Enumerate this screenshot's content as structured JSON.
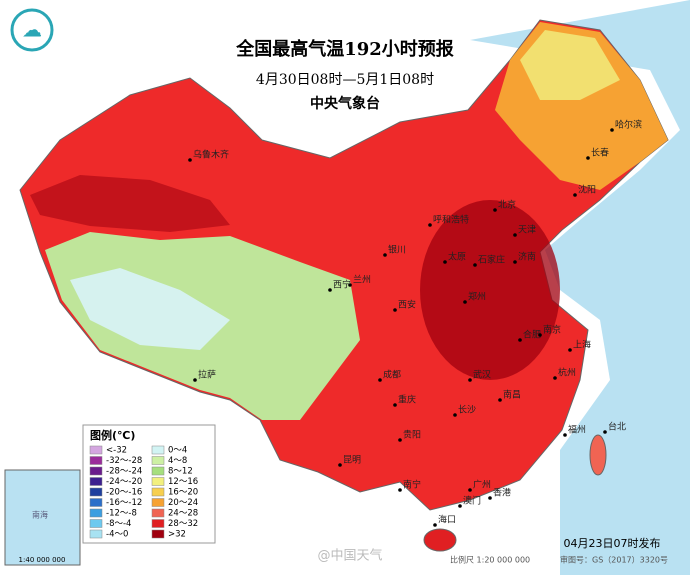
{
  "header": {
    "title": "全国最高气温192小时预报",
    "subtitle": "4月30日08时—5月1日08时",
    "agency": "中央气象台"
  },
  "legend": {
    "title": "图例(℃)",
    "items": [
      {
        "label": "<-32",
        "color": "#d4a6e0"
      },
      {
        "label": "-32～-28",
        "color": "#9b2c9b"
      },
      {
        "label": "-28～-24",
        "color": "#6a1b8c"
      },
      {
        "label": "-24～-20",
        "color": "#3c1f8f"
      },
      {
        "label": "-20～-16",
        "color": "#1f3f9e"
      },
      {
        "label": "-16～-12",
        "color": "#2c6fc9"
      },
      {
        "label": "-12～-8",
        "color": "#3c9ee0"
      },
      {
        "label": "-8～-4",
        "color": "#6dc9ef"
      },
      {
        "label": "-4～0",
        "color": "#a8e2f2"
      },
      {
        "label": "0～4",
        "color": "#d2f4f4"
      },
      {
        "label": "4～8",
        "color": "#cdf0a4"
      },
      {
        "label": "8～12",
        "color": "#a6df7e"
      },
      {
        "label": "12～16",
        "color": "#f2f07e"
      },
      {
        "label": "16～20",
        "color": "#f7cf4f"
      },
      {
        "label": "20～24",
        "color": "#f6a233"
      },
      {
        "label": "24～28",
        "color": "#f06453"
      },
      {
        "label": "28～32",
        "color": "#e01f22"
      },
      {
        "label": ">32",
        "color": "#a0000f"
      }
    ]
  },
  "cities": [
    "乌鲁木齐",
    "哈尔滨",
    "长春",
    "沈阳",
    "呼和浩特",
    "北京",
    "天津",
    "石家庄",
    "太原",
    "济南",
    "银川",
    "兰州",
    "西宁",
    "西安",
    "郑州",
    "合肥",
    "南京",
    "上海",
    "武汉",
    "杭州",
    "成都",
    "重庆",
    "长沙",
    "南昌",
    "福州",
    "台北",
    "贵阳",
    "昆明",
    "南宁",
    "广州",
    "香港",
    "澳门",
    "海口",
    "拉萨"
  ],
  "footer": {
    "issued": "04月23日07时发布",
    "scale": "比例尺 1:20 000 000",
    "approval": "审图号：GS（2017）3320号",
    "watermark": "@中国天气"
  },
  "inset": {
    "scale": "1:40 000 000",
    "sea": "南海"
  }
}
